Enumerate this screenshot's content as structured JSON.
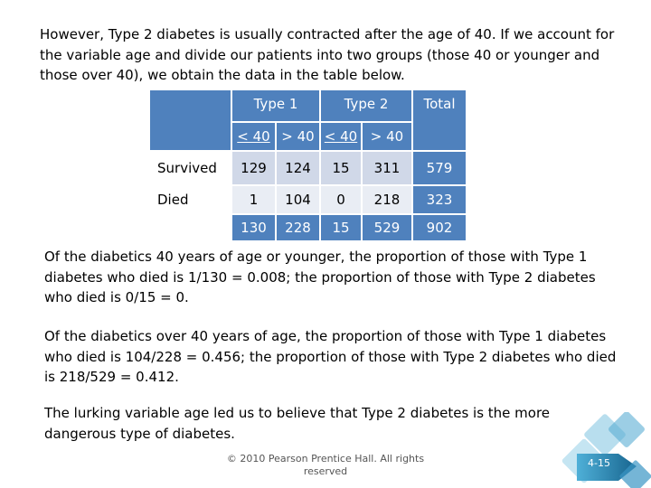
{
  "intro": "However, Type 2 diabetes is usually contracted after the age of 40.  If we account for the variable age and divide our patients into two groups (those 40 or younger and those over 40), we obtain the data in the table below.",
  "table": {
    "header_groups": [
      "Type 1",
      "Type 2",
      "Total"
    ],
    "sub_headers": [
      "< 40",
      "> 40",
      "< 40",
      "> 40"
    ],
    "rows": [
      {
        "label": "Survived",
        "values": [
          "129",
          "124",
          "15",
          "311",
          "579"
        ]
      },
      {
        "label": "Died",
        "values": [
          "1",
          "104",
          "0",
          "218",
          "323"
        ]
      },
      {
        "label": "",
        "values": [
          "130",
          "228",
          "15",
          "529",
          "902"
        ]
      }
    ]
  },
  "paragraphs": [
    "Of the diabetics 40 years of age or younger, the proportion of those with Type 1 diabetes who died is 1/130 = 0.008; the proportion of those with Type 2 diabetes who died is 0/15 = 0.",
    "Of the diabetics over 40 years of age, the proportion of those with Type 1 diabetes who died is 104/228 = 0.456; the proportion of those with Type 2 diabetes who died is 218/529 = 0.412.",
    "The lurking variable age led us to believe that Type 2 diabetes is the more dangerous type of diabetes."
  ],
  "footer": "© 2010 Pearson Prentice Hall. All rights reserved",
  "page_number": "4-15",
  "colors": {
    "header_blue": "#4f81bd",
    "row_light": "#d0d8e8",
    "row_lighter": "#e9edf4",
    "badge_teal": "#2f8fb8"
  }
}
